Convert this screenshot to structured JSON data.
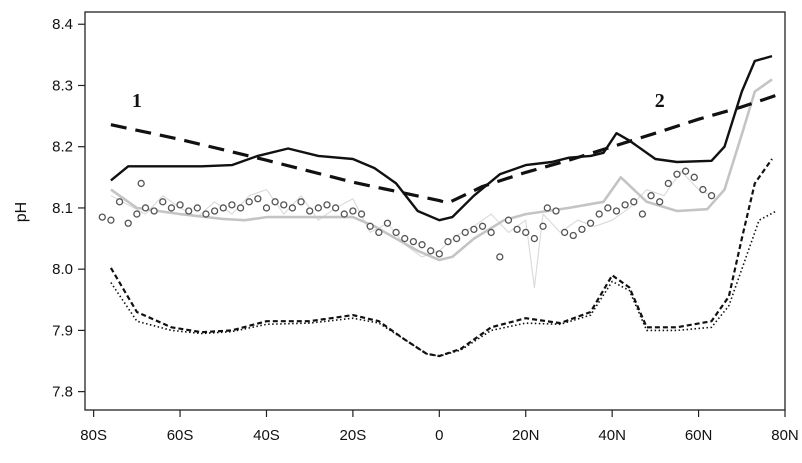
{
  "chart_data": {
    "type": "line",
    "title": "",
    "xlabel": "",
    "ylabel": "pH",
    "xlim": [
      -82,
      80
    ],
    "ylim": [
      7.77,
      8.42
    ],
    "grid": false,
    "x_ticks": [
      {
        "value": -80,
        "label": "80S"
      },
      {
        "value": -60,
        "label": "60S"
      },
      {
        "value": -40,
        "label": "40S"
      },
      {
        "value": -20,
        "label": "20S"
      },
      {
        "value": 0,
        "label": "0"
      },
      {
        "value": 20,
        "label": "20N"
      },
      {
        "value": 40,
        "label": "40N"
      },
      {
        "value": 60,
        "label": "60N"
      },
      {
        "value": 80,
        "label": "80N"
      }
    ],
    "y_ticks": [
      {
        "value": 7.8,
        "label": "7.8"
      },
      {
        "value": 7.9,
        "label": "7.9"
      },
      {
        "value": 8.0,
        "label": "8.0"
      },
      {
        "value": 8.1,
        "label": "8.1"
      },
      {
        "value": 8.2,
        "label": "8.2"
      },
      {
        "value": 8.3,
        "label": "8.3"
      },
      {
        "value": 8.4,
        "label": "8.4"
      }
    ],
    "annotations": [
      {
        "text": "1",
        "x": -70,
        "y": 8.265
      },
      {
        "text": "2",
        "x": 51,
        "y": 8.265
      }
    ],
    "series": [
      {
        "style": "solid-black",
        "color": "#111111",
        "points": [
          [
            -76,
            8.145
          ],
          [
            -72,
            8.168
          ],
          [
            -65,
            8.168
          ],
          [
            -55,
            8.168
          ],
          [
            -48,
            8.17
          ],
          [
            -42,
            8.185
          ],
          [
            -35,
            8.197
          ],
          [
            -28,
            8.185
          ],
          [
            -20,
            8.18
          ],
          [
            -15,
            8.165
          ],
          [
            -10,
            8.14
          ],
          [
            -5,
            8.095
          ],
          [
            0,
            8.08
          ],
          [
            3,
            8.085
          ],
          [
            8,
            8.12
          ],
          [
            14,
            8.155
          ],
          [
            20,
            8.17
          ],
          [
            26,
            8.175
          ],
          [
            30,
            8.182
          ],
          [
            35,
            8.185
          ],
          [
            38,
            8.19
          ],
          [
            41,
            8.222
          ],
          [
            44,
            8.21
          ],
          [
            50,
            8.18
          ],
          [
            55,
            8.175
          ],
          [
            63,
            8.177
          ],
          [
            66,
            8.2
          ],
          [
            70,
            8.29
          ],
          [
            73,
            8.34
          ],
          [
            77,
            8.348
          ]
        ]
      },
      {
        "style": "dashed-black-thick",
        "color": "#111111",
        "points": [
          [
            -76,
            8.236
          ],
          [
            -60,
            8.212
          ],
          [
            -40,
            8.178
          ],
          [
            -20,
            8.142
          ],
          [
            0,
            8.112
          ],
          [
            2,
            8.108
          ],
          [
            10,
            8.135
          ],
          [
            20,
            8.158
          ],
          [
            30,
            8.178
          ],
          [
            40,
            8.2
          ],
          [
            50,
            8.222
          ],
          [
            60,
            8.245
          ],
          [
            70,
            8.265
          ],
          [
            78,
            8.284
          ]
        ]
      },
      {
        "style": "solid-gray",
        "color": "#c4c4c4",
        "points": [
          [
            -76,
            8.13
          ],
          [
            -70,
            8.1
          ],
          [
            -60,
            8.09
          ],
          [
            -50,
            8.082
          ],
          [
            -45,
            8.08
          ],
          [
            -40,
            8.085
          ],
          [
            -30,
            8.085
          ],
          [
            -20,
            8.085
          ],
          [
            -15,
            8.07
          ],
          [
            -10,
            8.05
          ],
          [
            -5,
            8.03
          ],
          [
            0,
            8.015
          ],
          [
            3,
            8.02
          ],
          [
            8,
            8.05
          ],
          [
            15,
            8.08
          ],
          [
            20,
            8.09
          ],
          [
            30,
            8.1
          ],
          [
            38,
            8.11
          ],
          [
            42,
            8.15
          ],
          [
            48,
            8.11
          ],
          [
            55,
            8.095
          ],
          [
            62,
            8.098
          ],
          [
            66,
            8.13
          ],
          [
            70,
            8.22
          ],
          [
            73,
            8.29
          ],
          [
            77,
            8.31
          ]
        ]
      },
      {
        "style": "thin-gray",
        "color": "#d9d9d9",
        "points": [
          [
            -76,
            8.12
          ],
          [
            -72,
            8.105
          ],
          [
            -68,
            8.09
          ],
          [
            -64,
            8.12
          ],
          [
            -60,
            8.1
          ],
          [
            -56,
            8.085
          ],
          [
            -52,
            8.11
          ],
          [
            -48,
            8.09
          ],
          [
            -44,
            8.12
          ],
          [
            -40,
            8.13
          ],
          [
            -36,
            8.09
          ],
          [
            -32,
            8.12
          ],
          [
            -28,
            8.08
          ],
          [
            -24,
            8.1
          ],
          [
            -20,
            8.115
          ],
          [
            -16,
            8.06
          ],
          [
            -12,
            8.075
          ],
          [
            -8,
            8.04
          ],
          [
            -4,
            8.02
          ],
          [
            0,
            8.03
          ],
          [
            4,
            8.055
          ],
          [
            8,
            8.07
          ],
          [
            12,
            8.09
          ],
          [
            16,
            8.06
          ],
          [
            20,
            8.08
          ],
          [
            22,
            7.97
          ],
          [
            24,
            8.09
          ],
          [
            28,
            8.06
          ],
          [
            32,
            8.08
          ],
          [
            36,
            8.07
          ],
          [
            40,
            8.08
          ],
          [
            44,
            8.1
          ],
          [
            48,
            8.13
          ],
          [
            52,
            8.12
          ],
          [
            56,
            8.16
          ],
          [
            60,
            8.13
          ],
          [
            63,
            8.12
          ]
        ]
      },
      {
        "style": "dashed-black",
        "color": "#111111",
        "points": [
          [
            -76,
            8.002
          ],
          [
            -70,
            7.93
          ],
          [
            -62,
            7.905
          ],
          [
            -55,
            7.897
          ],
          [
            -48,
            7.9
          ],
          [
            -40,
            7.915
          ],
          [
            -30,
            7.915
          ],
          [
            -20,
            7.925
          ],
          [
            -14,
            7.915
          ],
          [
            -8,
            7.885
          ],
          [
            -3,
            7.862
          ],
          [
            0,
            7.858
          ],
          [
            5,
            7.87
          ],
          [
            12,
            7.905
          ],
          [
            20,
            7.92
          ],
          [
            28,
            7.912
          ],
          [
            35,
            7.93
          ],
          [
            40,
            7.99
          ],
          [
            44,
            7.97
          ],
          [
            48,
            7.905
          ],
          [
            55,
            7.905
          ],
          [
            63,
            7.915
          ],
          [
            67,
            7.955
          ],
          [
            70,
            8.05
          ],
          [
            73,
            8.14
          ],
          [
            77,
            8.18
          ]
        ]
      },
      {
        "style": "dotted-black",
        "color": "#111111",
        "points": [
          [
            -76,
            7.978
          ],
          [
            -70,
            7.915
          ],
          [
            -62,
            7.9
          ],
          [
            -55,
            7.895
          ],
          [
            -48,
            7.898
          ],
          [
            -40,
            7.91
          ],
          [
            -30,
            7.912
          ],
          [
            -20,
            7.92
          ],
          [
            -14,
            7.912
          ],
          [
            -8,
            7.885
          ],
          [
            -3,
            7.862
          ],
          [
            0,
            7.858
          ],
          [
            5,
            7.868
          ],
          [
            12,
            7.9
          ],
          [
            20,
            7.912
          ],
          [
            28,
            7.91
          ],
          [
            35,
            7.925
          ],
          [
            40,
            7.98
          ],
          [
            44,
            7.965
          ],
          [
            48,
            7.9
          ],
          [
            55,
            7.9
          ],
          [
            63,
            7.905
          ],
          [
            67,
            7.94
          ],
          [
            70,
            8.0
          ],
          [
            74,
            8.08
          ],
          [
            78,
            8.095
          ]
        ]
      }
    ],
    "scatter": {
      "marker": "open-circle",
      "color": "#555555",
      "points": [
        [
          -78,
          8.085
        ],
        [
          -76,
          8.08
        ],
        [
          -74,
          8.11
        ],
        [
          -72,
          8.075
        ],
        [
          -70,
          8.09
        ],
        [
          -69,
          8.14
        ],
        [
          -68,
          8.1
        ],
        [
          -66,
          8.095
        ],
        [
          -64,
          8.11
        ],
        [
          -62,
          8.1
        ],
        [
          -60,
          8.105
        ],
        [
          -58,
          8.095
        ],
        [
          -56,
          8.1
        ],
        [
          -54,
          8.09
        ],
        [
          -52,
          8.095
        ],
        [
          -50,
          8.1
        ],
        [
          -48,
          8.105
        ],
        [
          -46,
          8.1
        ],
        [
          -44,
          8.11
        ],
        [
          -42,
          8.115
        ],
        [
          -40,
          8.1
        ],
        [
          -38,
          8.11
        ],
        [
          -36,
          8.105
        ],
        [
          -34,
          8.1
        ],
        [
          -32,
          8.11
        ],
        [
          -30,
          8.095
        ],
        [
          -28,
          8.1
        ],
        [
          -26,
          8.105
        ],
        [
          -24,
          8.1
        ],
        [
          -22,
          8.09
        ],
        [
          -20,
          8.095
        ],
        [
          -18,
          8.09
        ],
        [
          -16,
          8.07
        ],
        [
          -14,
          8.06
        ],
        [
          -12,
          8.075
        ],
        [
          -10,
          8.06
        ],
        [
          -8,
          8.05
        ],
        [
          -6,
          8.045
        ],
        [
          -4,
          8.04
        ],
        [
          -2,
          8.03
        ],
        [
          0,
          8.025
        ],
        [
          2,
          8.045
        ],
        [
          4,
          8.05
        ],
        [
          6,
          8.06
        ],
        [
          8,
          8.065
        ],
        [
          10,
          8.07
        ],
        [
          12,
          8.06
        ],
        [
          14,
          8.02
        ],
        [
          16,
          8.08
        ],
        [
          18,
          8.065
        ],
        [
          20,
          8.06
        ],
        [
          22,
          8.05
        ],
        [
          24,
          8.07
        ],
        [
          25,
          8.1
        ],
        [
          27,
          8.095
        ],
        [
          29,
          8.06
        ],
        [
          31,
          8.055
        ],
        [
          33,
          8.065
        ],
        [
          35,
          8.075
        ],
        [
          37,
          8.09
        ],
        [
          39,
          8.1
        ],
        [
          41,
          8.095
        ],
        [
          43,
          8.105
        ],
        [
          45,
          8.11
        ],
        [
          47,
          8.09
        ],
        [
          49,
          8.12
        ],
        [
          51,
          8.11
        ],
        [
          53,
          8.14
        ],
        [
          55,
          8.155
        ],
        [
          57,
          8.16
        ],
        [
          59,
          8.15
        ],
        [
          61,
          8.13
        ],
        [
          63,
          8.12
        ]
      ]
    }
  }
}
